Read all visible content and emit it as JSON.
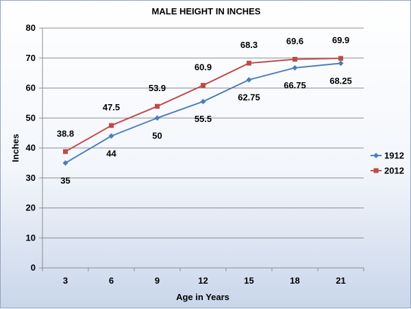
{
  "chart_data": {
    "type": "line",
    "title": "MALE HEIGHT IN INCHES",
    "xlabel": "Age in Years",
    "ylabel": "Inches",
    "categories": [
      "3",
      "6",
      "9",
      "12",
      "15",
      "18",
      "21"
    ],
    "ylim": [
      0,
      80
    ],
    "yticks": [
      0,
      10,
      20,
      30,
      40,
      50,
      60,
      70,
      80
    ],
    "grid": true,
    "legend_position": "right",
    "series": [
      {
        "name": "1912",
        "color": "#4a7ebb",
        "marker": "diamond",
        "values": [
          35,
          44,
          50,
          55.5,
          62.75,
          66.75,
          68.25
        ],
        "labels": [
          "35",
          "44",
          "50",
          "55.5",
          "62.75",
          "66.75",
          "68.25"
        ]
      },
      {
        "name": "2012",
        "color": "#be4b48",
        "marker": "square",
        "values": [
          38.8,
          47.5,
          53.9,
          60.9,
          68.3,
          69.6,
          69.9
        ],
        "labels": [
          "38.8",
          "47.5",
          "53.9",
          "60.9",
          "68.3",
          "69.6",
          "69.9"
        ]
      }
    ]
  }
}
